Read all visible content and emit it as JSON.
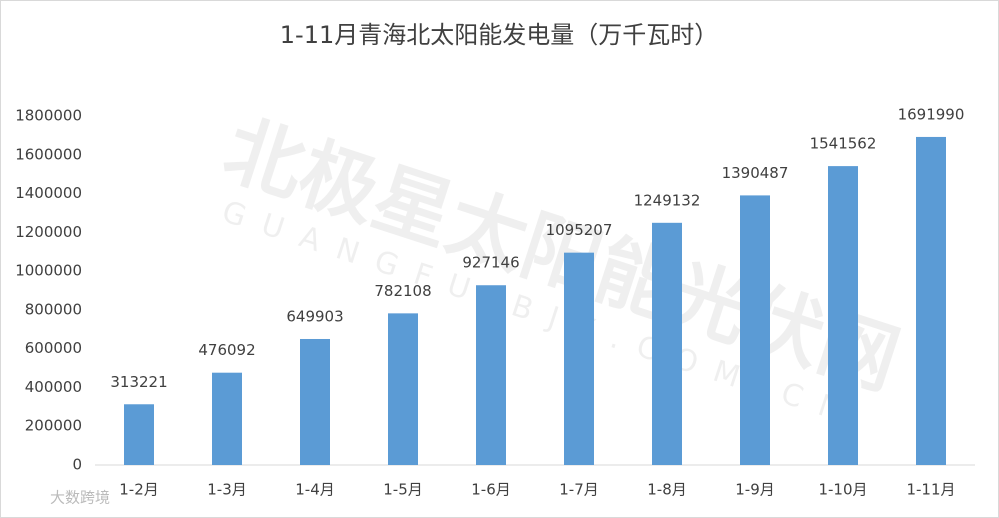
{
  "chart_data": {
    "type": "bar",
    "title": "1-11月青海北太阳能发电量（万千瓦时）",
    "categories": [
      "1-2月",
      "1-3月",
      "1-4月",
      "1-5月",
      "1-6月",
      "1-7月",
      "1-8月",
      "1-9月",
      "1-10月",
      "1-11月"
    ],
    "values": [
      313221,
      476092,
      649903,
      782108,
      927146,
      1095207,
      1249132,
      1390487,
      1541562,
      1691990
    ],
    "color": "#5b9bd5",
    "ylim": [
      0,
      1800000
    ],
    "yticks": [
      0,
      200000,
      400000,
      600000,
      800000,
      1000000,
      1200000,
      1400000,
      1600000,
      1800000
    ],
    "grid": false,
    "watermarks": [
      "北极星太阳能光伏网",
      "GUANGFU.BJX.COM.CN",
      "大数跨境"
    ]
  }
}
